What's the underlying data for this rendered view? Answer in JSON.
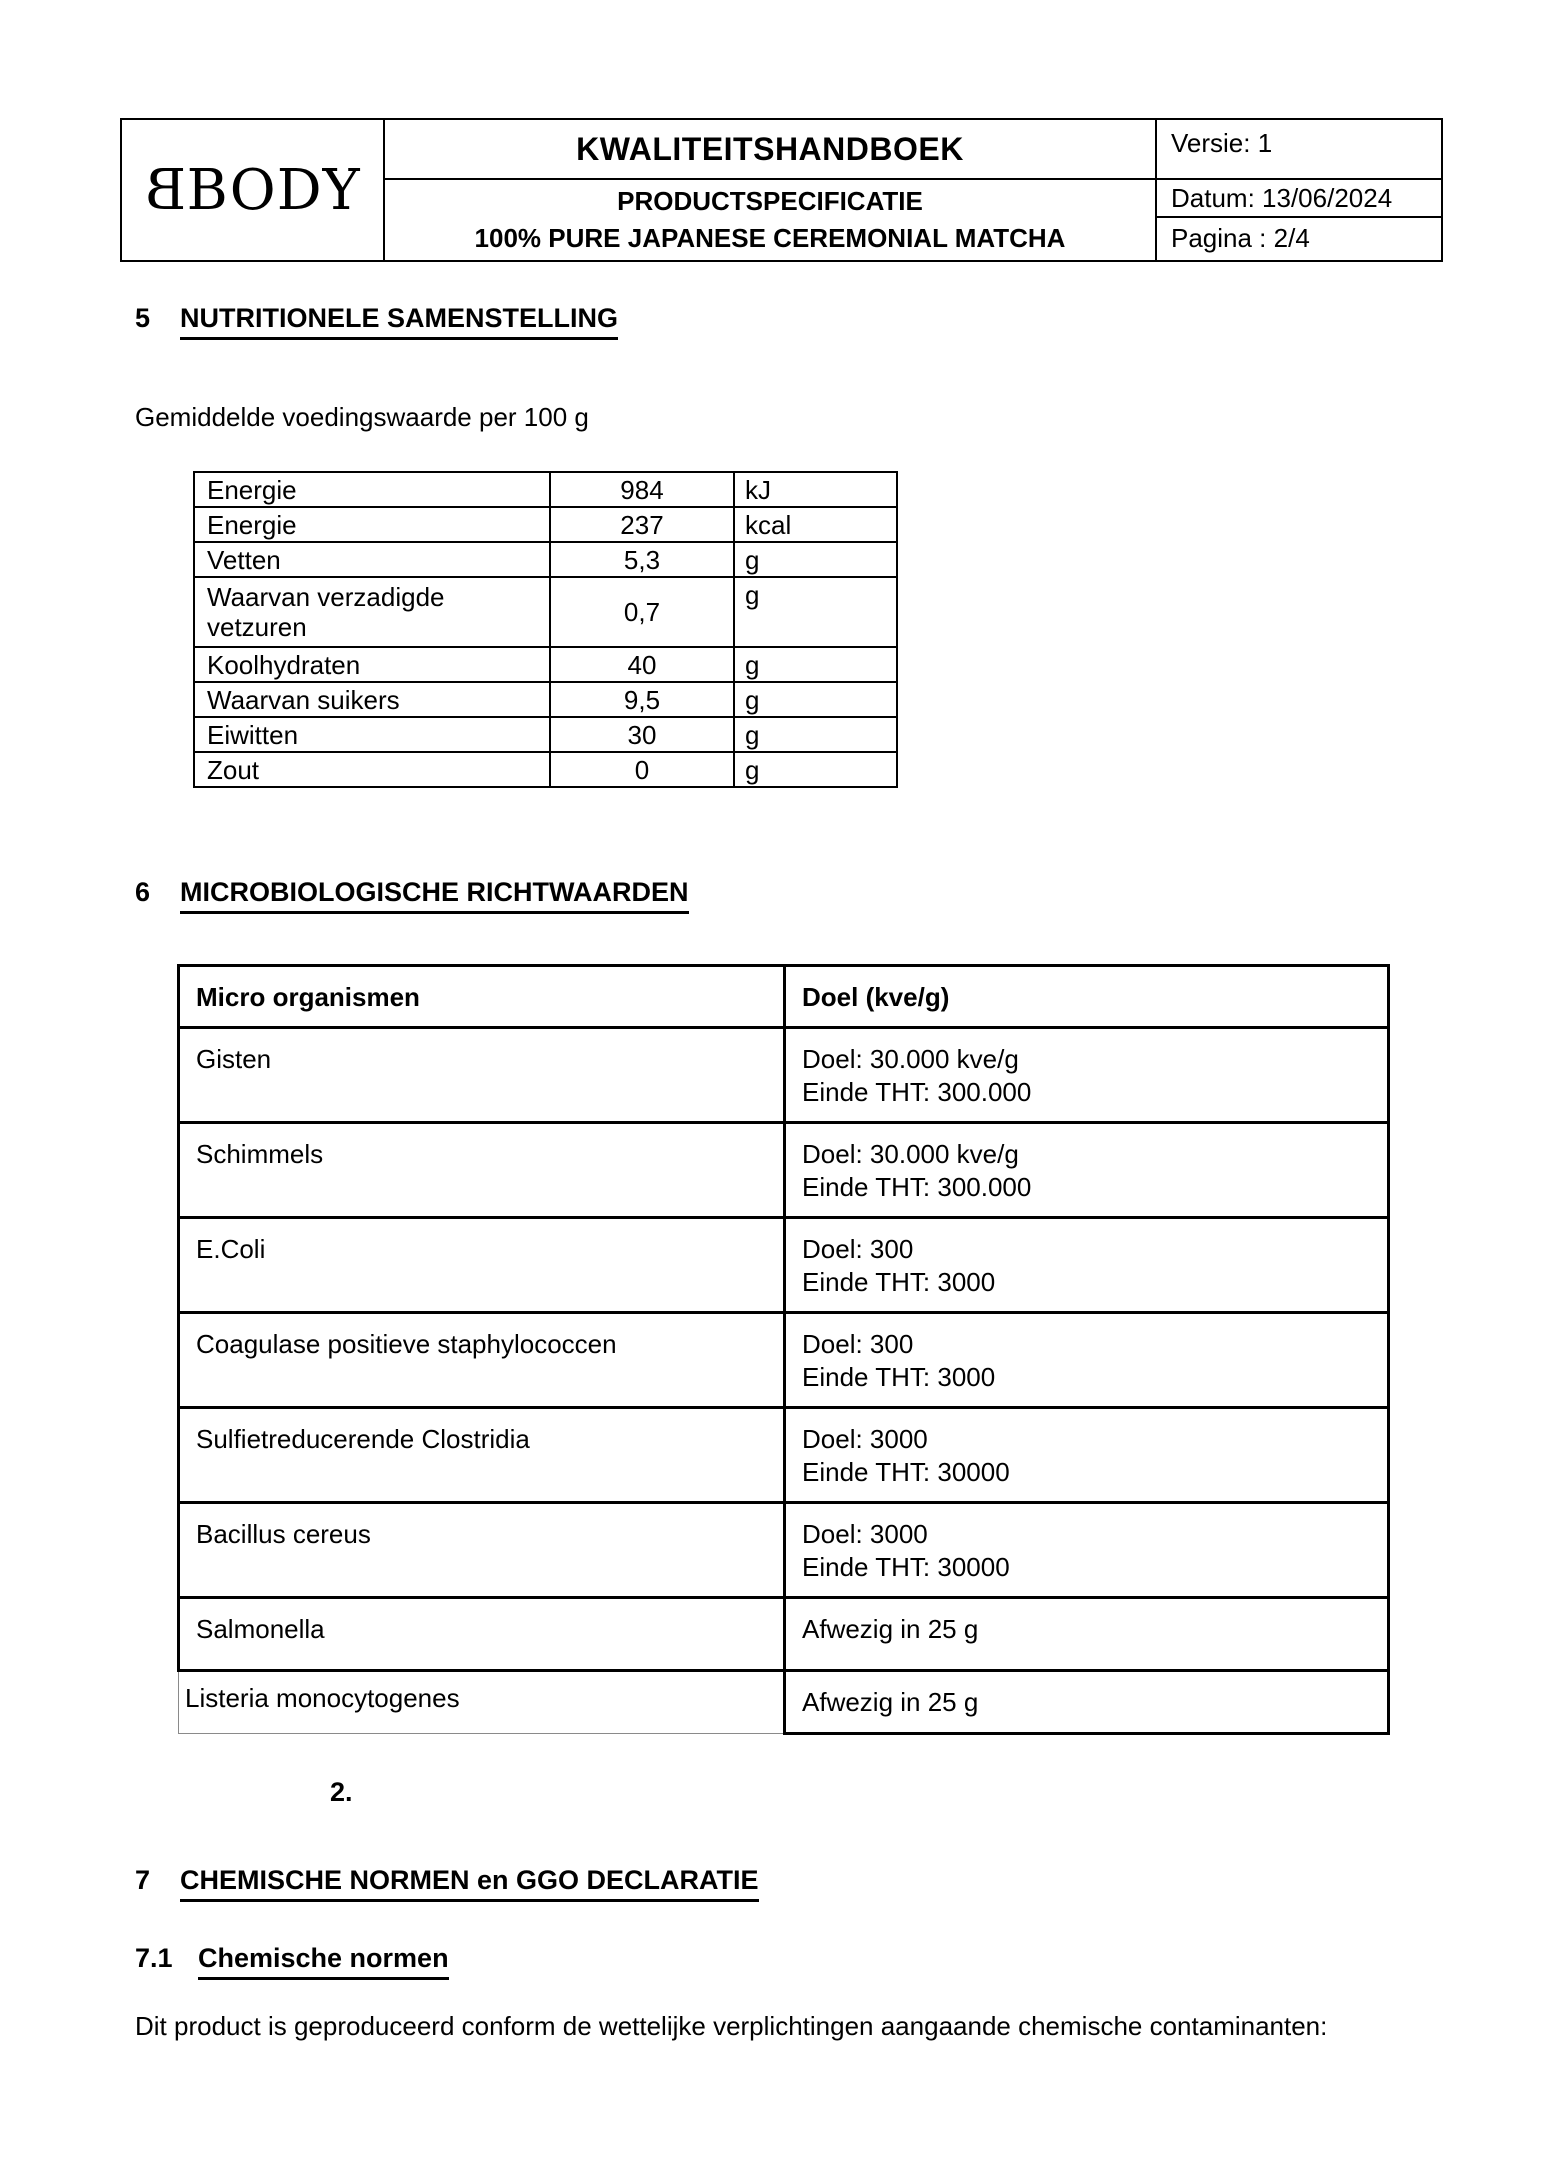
{
  "header": {
    "logo_first": "B",
    "logo_rest": "BODY",
    "title": "KWALITEITSHANDBOEK",
    "subtitle1": "PRODUCTSPECIFICATIE",
    "subtitle2": "100% PURE JAPANESE CEREMONIAL MATCHA",
    "versie": "Versie: 1",
    "datum": "Datum: 13/06/2024",
    "pagina": "Pagina : 2/4"
  },
  "section5": {
    "number": "5",
    "title": "NUTRITIONELE SAMENSTELLING",
    "intro": "Gemiddelde voedingswaarde per 100 g"
  },
  "nutrition_table": {
    "rows": [
      {
        "label": "Energie",
        "value": "984",
        "unit": "kJ"
      },
      {
        "label": "Energie",
        "value": "237",
        "unit": "kcal"
      },
      {
        "label": "Vetten",
        "value": "5,3",
        "unit": "g"
      },
      {
        "label": "Waarvan verzadigde vetzuren",
        "value": "0,7",
        "unit": "g"
      },
      {
        "label": "Koolhydraten",
        "value": "40",
        "unit": "g"
      },
      {
        "label": "Waarvan suikers",
        "value": "9,5",
        "unit": "g"
      },
      {
        "label": "Eiwitten",
        "value": "30",
        "unit": "g"
      },
      {
        "label": "Zout",
        "value": "0",
        "unit": "g"
      }
    ]
  },
  "section6": {
    "number": "6",
    "title": "MICROBIOLOGISCHE RICHTWAARDEN"
  },
  "micro_table": {
    "header_organism": "Micro organismen",
    "header_doel": "Doel (kve/g)",
    "rows": [
      {
        "organism": "Gisten",
        "line1": "Doel: 30.000 kve/g",
        "line2": "Einde THT: 300.000"
      },
      {
        "organism": "Schimmels",
        "line1": "Doel: 30.000 kve/g",
        "line2": "Einde THT: 300.000"
      },
      {
        "organism": "E.Coli",
        "line1": "Doel: 300",
        "line2": "Einde THT: 3000"
      },
      {
        "organism": "Coagulase positieve staphylococcen",
        "line1": "Doel: 300",
        "line2": "Einde THT: 3000"
      },
      {
        "organism": "Sulfietreducerende Clostridia",
        "line1": "Doel: 3000",
        "line2": "Einde THT: 30000"
      },
      {
        "organism": "Bacillus cereus",
        "line1": "Doel: 3000",
        "line2": "Einde THT: 30000"
      },
      {
        "organism": "Salmonella",
        "line1": "Afwezig in 25 g"
      },
      {
        "organism": "Listeria monocytogenes",
        "line1": "Afwezig in 25 g"
      }
    ]
  },
  "stray_note": "2.",
  "section7": {
    "number": "7",
    "title": "CHEMISCHE NORMEN en GGO DECLARATIE"
  },
  "section7_1": {
    "number": "7.1",
    "title": "Chemische normen"
  },
  "paragraph": "Dit product is geproduceerd conform de wettelijke verplichtingen aangaande chemische contaminanten:"
}
